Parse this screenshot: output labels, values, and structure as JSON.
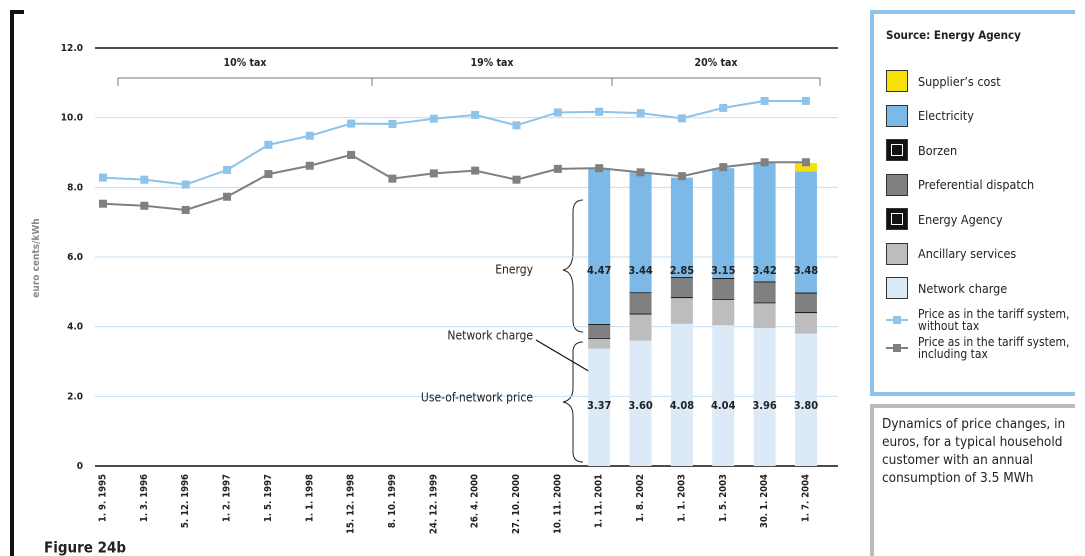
{
  "chart_data": {
    "type": "combo",
    "figure_label": "Figure 24b",
    "ylabel": "euro cents/kWh",
    "ylim": [
      0,
      12
    ],
    "yticks": [
      0,
      {
        "value": 2,
        "label": "2.0"
      },
      {
        "value": 4,
        "label": "4.0"
      },
      {
        "value": 6,
        "label": "6.0"
      },
      {
        "value": 8,
        "label": "8.0"
      },
      {
        "value": 10,
        "label": "10.0"
      },
      {
        "value": 12,
        "label": "12.0"
      }
    ],
    "grid": true,
    "categories": [
      "1. 9. 1995",
      "1. 3. 1996",
      "5. 12. 1996",
      "1. 2. 1997",
      "1. 5. 1997",
      "1. 1. 1998",
      "15. 12. 1998",
      "8. 10. 1999",
      "24. 12. 1999",
      "26. 4. 2000",
      "27. 10. 2000",
      "10. 11. 2000",
      "1. 11. 2001",
      "1. 8. 2002",
      "1. 1. 2003",
      "1. 5. 2003",
      "30. 1. 2004",
      "1. 7. 2004"
    ],
    "tax_labels": [
      "10% tax",
      "19% tax",
      "20% tax"
    ],
    "annotations": [
      "Energy",
      "Network charge",
      "Use-of-network price"
    ],
    "source": "Source: Energy Agency",
    "caption": "Dynamics of price changes, in euros, for a typical household customer with an annual consumption of 3.5 MWh",
    "series": [
      {
        "name": "Supplier’s cost",
        "kind": "bar",
        "color": "#f5e10a",
        "values": [
          null,
          null,
          null,
          null,
          null,
          null,
          null,
          null,
          null,
          null,
          null,
          null,
          null,
          null,
          null,
          null,
          null,
          0.24
        ]
      },
      {
        "name": "Electricity",
        "kind": "bar",
        "color": "#7db9e6",
        "values": [
          null,
          null,
          null,
          null,
          null,
          null,
          null,
          null,
          null,
          null,
          null,
          null,
          4.47,
          3.44,
          2.85,
          3.15,
          3.42,
          3.48
        ],
        "value_labels": [
          null,
          null,
          null,
          null,
          null,
          null,
          null,
          null,
          null,
          null,
          null,
          null,
          "4.47",
          "3.44",
          "2.85",
          "3.15",
          "3.42",
          "3.48"
        ]
      },
      {
        "name": "Borzen",
        "kind": "bar",
        "color": "#111111",
        "values": [
          null,
          null,
          null,
          null,
          null,
          null,
          null,
          null,
          null,
          null,
          null,
          null,
          0.03,
          0.03,
          0.03,
          0.03,
          0.03,
          0.03
        ]
      },
      {
        "name": "Preferential dispatch",
        "kind": "bar",
        "color": "#808080",
        "values": [
          null,
          null,
          null,
          null,
          null,
          null,
          null,
          null,
          null,
          null,
          null,
          null,
          0.37,
          0.58,
          0.55,
          0.57,
          0.57,
          0.53
        ]
      },
      {
        "name": "Energy Agency",
        "kind": "bar",
        "color": "#111111",
        "values": [
          null,
          null,
          null,
          null,
          null,
          null,
          null,
          null,
          null,
          null,
          null,
          null,
          0.03,
          0.03,
          0.03,
          0.03,
          0.03,
          0.03
        ]
      },
      {
        "name": "Ancillary services",
        "kind": "bar",
        "color": "#bdbdbd",
        "values": [
          null,
          null,
          null,
          null,
          null,
          null,
          null,
          null,
          null,
          null,
          null,
          null,
          0.28,
          0.75,
          0.74,
          0.73,
          0.71,
          0.59
        ]
      },
      {
        "name": "Network charge",
        "kind": "bar",
        "color": "#dce9f7",
        "values": [
          null,
          null,
          null,
          null,
          null,
          null,
          null,
          null,
          null,
          null,
          null,
          null,
          3.37,
          3.6,
          4.08,
          4.04,
          3.96,
          3.8
        ],
        "value_labels": [
          null,
          null,
          null,
          null,
          null,
          null,
          null,
          null,
          null,
          null,
          null,
          null,
          "3.37",
          "3.60",
          "4.08",
          "4.04",
          "3.96",
          "3.80"
        ]
      },
      {
        "name": "Price as in the tariff system, without tax",
        "kind": "line",
        "color": "#8ec3ea",
        "values": [
          8.28,
          8.22,
          8.08,
          8.5,
          9.22,
          9.48,
          9.83,
          9.82,
          9.97,
          10.08,
          9.78,
          10.15,
          10.17,
          10.13,
          9.98,
          10.28,
          10.48,
          10.48
        ]
      },
      {
        "name": "Price as in the tariff system, including tax",
        "kind": "line",
        "color": "#808080",
        "values": [
          7.53,
          7.47,
          7.35,
          7.73,
          8.38,
          8.62,
          8.93,
          8.25,
          8.4,
          8.48,
          8.22,
          8.53,
          8.55,
          8.43,
          8.32,
          8.58,
          8.72,
          8.72
        ]
      }
    ]
  }
}
